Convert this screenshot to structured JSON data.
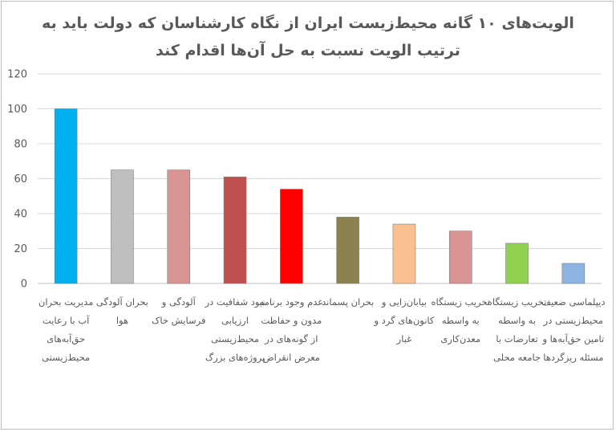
{
  "chart_data": {
    "type": "bar",
    "title": "الویت‌های ۱۰ گانه محیط‌زیست ایران از نگاه کارشناسان که دولت باید به ترتیب الویت نسبت به حل آن‌ها اقدام کند",
    "title_lines": [
      "الویت‌های ۱۰ گانه محیط‌زیست ایران از نگاه کارشناسان که دولت باید به",
      "ترتیب الویت نسبت به حل آن‌ها اقدام کند"
    ],
    "categories": [
      "مدیریت بحران آب با رعایت حق‌آبه‌های محیط‌زیستی",
      "بحران آلودگی هوا",
      "آلودگی و فرسایش خاک",
      "نبود شفافیت در ارزیابی محیط‌زیستی پروژه‌های بزرگ",
      "عدم وجود برنامه مدون و حفاظت از گونه‌های در معرض انقراض",
      "بحران پسماند",
      "بیابان‌زایی و کانون‌های گرد و غبار",
      "تخریب زیستگاه به واسطه معدن‌کاری",
      "تخریب زیستگاه به واسطه تعارضات با جامعه محلی",
      "دیپلماسی ضعیف محیط‌زیستی در تامین حق‌آبه‌ها و مسئله ریزگردها"
    ],
    "values": [
      100,
      65,
      65,
      61,
      54,
      38,
      34,
      30,
      23,
      11.5
    ],
    "colors": [
      "#00b0f0",
      "#bfbfbf",
      "#d99594",
      "#c0504d",
      "#ff0000",
      "#8c8250",
      "#fac090",
      "#d99594",
      "#92d050",
      "#8db3e2"
    ],
    "ylim": [
      0,
      120
    ],
    "yticks": [
      0,
      20,
      40,
      60,
      80,
      100,
      120
    ],
    "grid": true,
    "xlabel": "",
    "ylabel": ""
  }
}
